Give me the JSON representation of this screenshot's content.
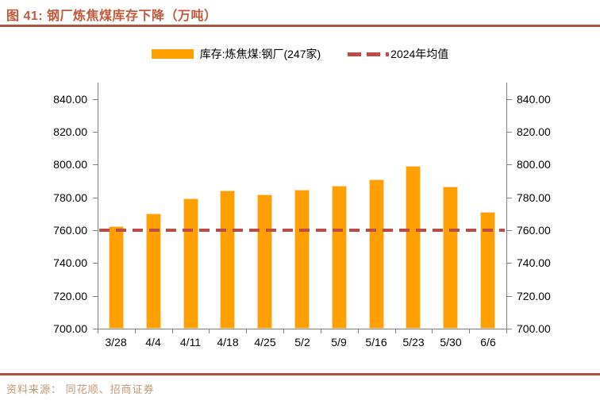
{
  "figure": {
    "title": "图 41:  钢厂炼焦煤库存下降（万吨）",
    "source": "资料来源： 同花顺、招商证券"
  },
  "legend": {
    "series_label": "库存:炼焦煤:钢厂(247家)",
    "mean_label": "2024年均值"
  },
  "colors": {
    "bar": "#FFA000",
    "bar_border": "#FCD8A4",
    "mean_line": "#BE4B48",
    "title": "#C2583C",
    "rule": "#AD5440",
    "source_text": "#C29877",
    "axis": "#7F7F7F",
    "label": "#000000"
  },
  "chart_data": {
    "type": "bar",
    "title": "钢厂炼焦煤库存下降（万吨）",
    "categories": [
      "3/28",
      "4/4",
      "4/11",
      "4/18",
      "4/25",
      "5/2",
      "5/9",
      "5/16",
      "5/23",
      "5/30",
      "6/6"
    ],
    "series": [
      {
        "name": "库存:炼焦煤:钢厂(247家)",
        "values": [
          762.5,
          770.0,
          779.5,
          784.0,
          782.0,
          784.5,
          787.0,
          791.0,
          799.0,
          786.5,
          771.0
        ]
      }
    ],
    "mean_line": {
      "name": "2024年均值",
      "value": 760.0
    },
    "ylim": [
      700,
      850
    ],
    "ytick_values": [
      700,
      720,
      740,
      760,
      780,
      800,
      820,
      840
    ],
    "ytick_labels": [
      "700.00",
      "720.00",
      "740.00",
      "760.00",
      "780.00",
      "800.00",
      "820.00",
      "840.00"
    ],
    "xlabel": "",
    "ylabel": "",
    "grid": false,
    "legend_position": "top",
    "dual_y_axis": true
  }
}
